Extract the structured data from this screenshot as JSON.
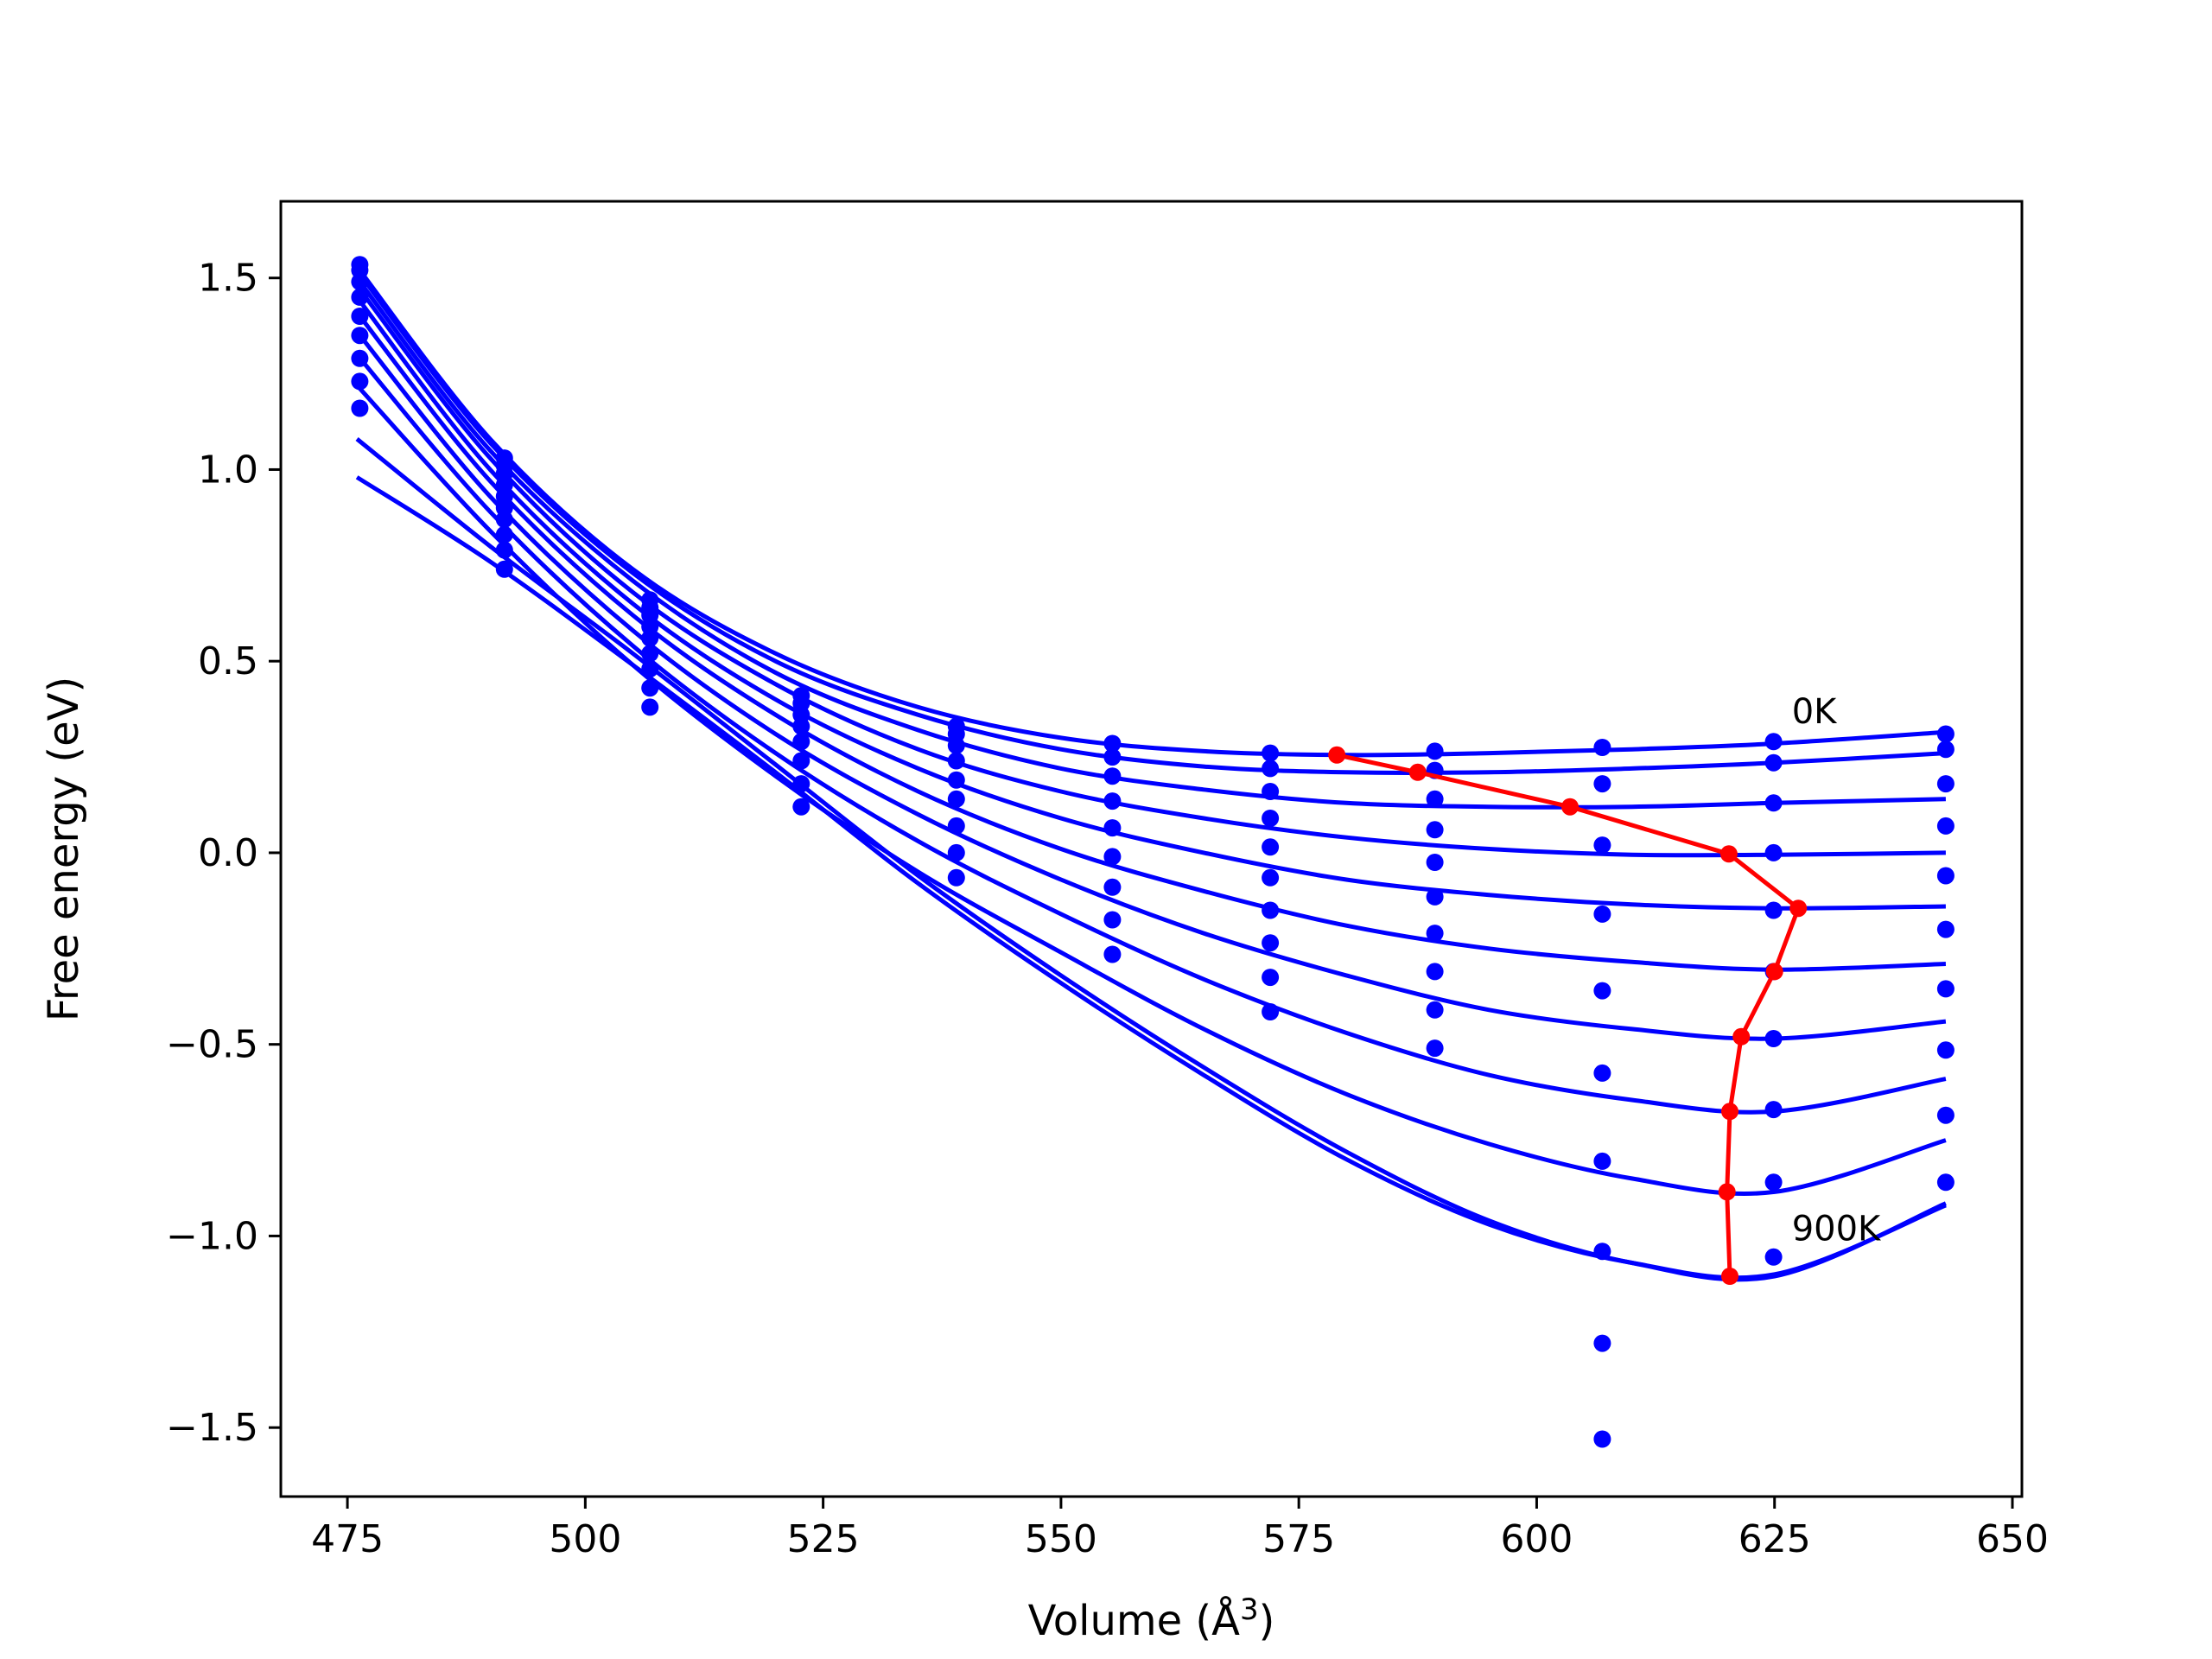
{
  "chart_data": {
    "type": "line",
    "title": "",
    "xlabel": "Volume (Å",
    "xlabel_sup": "3",
    "xlabel_end": ")",
    "ylabel": "Free energy (eV)",
    "xlim": [
      468,
      651
    ],
    "ylim": [
      -1.68,
      1.7
    ],
    "xticks": [
      475,
      500,
      525,
      550,
      575,
      600,
      625,
      650
    ],
    "yticks": [
      1.5,
      1.0,
      0.5,
      0.0,
      -0.5,
      -1.0,
      -1.5
    ],
    "ytick_labels": [
      "1.5",
      "1.0",
      "0.5",
      "0.0",
      "−0.5",
      "−1.0",
      "−1.5"
    ],
    "grid": false,
    "annotations": [
      {
        "text": "0K",
        "x": 625,
        "y": 0.37
      },
      {
        "text": "900K",
        "x": 625,
        "y": -0.98
      }
    ],
    "curve_color": "#0000ff",
    "scatter_color": "#0000ff",
    "minima_color": "#ff0000",
    "fitted_curves": [
      {
        "x": [
          476,
          490,
          505,
          520,
          535,
          550,
          565,
          580,
          595,
          610,
          625,
          643
        ],
        "y": [
          1.53,
          1.08,
          0.74,
          0.52,
          0.38,
          0.3,
          0.265,
          0.255,
          0.26,
          0.27,
          0.285,
          0.315
        ]
      },
      {
        "x": [
          476,
          490,
          505,
          520,
          535,
          550,
          565,
          580,
          595,
          610,
          625,
          643
        ],
        "y": [
          1.52,
          1.07,
          0.73,
          0.5,
          0.36,
          0.27,
          0.225,
          0.21,
          0.21,
          0.22,
          0.235,
          0.26
        ]
      },
      {
        "x": [
          476,
          490,
          505,
          520,
          535,
          550,
          565,
          580,
          595,
          610,
          625,
          643
        ],
        "y": [
          1.5,
          1.05,
          0.71,
          0.47,
          0.32,
          0.22,
          0.165,
          0.13,
          0.12,
          0.12,
          0.13,
          0.14
        ]
      },
      {
        "x": [
          476,
          490,
          505,
          520,
          535,
          550,
          565,
          580,
          595,
          610,
          625,
          643
        ],
        "y": [
          1.48,
          1.03,
          0.68,
          0.44,
          0.27,
          0.16,
          0.09,
          0.04,
          0.01,
          -0.005,
          -0.005,
          0.0
        ]
      },
      {
        "x": [
          476,
          490,
          505,
          520,
          535,
          550,
          565,
          580,
          595,
          610,
          625,
          643
        ],
        "y": [
          1.45,
          1.0,
          0.65,
          0.4,
          0.22,
          0.09,
          0.0,
          -0.07,
          -0.11,
          -0.135,
          -0.145,
          -0.14
        ]
      },
      {
        "x": [
          476,
          490,
          505,
          520,
          535,
          550,
          565,
          580,
          595,
          610,
          625,
          643
        ],
        "y": [
          1.41,
          0.97,
          0.62,
          0.36,
          0.16,
          0.01,
          -0.1,
          -0.19,
          -0.25,
          -0.285,
          -0.305,
          -0.29
        ]
      },
      {
        "x": [
          476,
          490,
          505,
          520,
          535,
          550,
          565,
          580,
          595,
          610,
          625,
          643
        ],
        "y": [
          1.36,
          0.93,
          0.58,
          0.31,
          0.1,
          -0.07,
          -0.21,
          -0.32,
          -0.41,
          -0.46,
          -0.485,
          -0.44
        ]
      },
      {
        "x": [
          476,
          490,
          505,
          520,
          535,
          550,
          565,
          580,
          595,
          610,
          625,
          643
        ],
        "y": [
          1.3,
          0.89,
          0.54,
          0.26,
          0.03,
          -0.16,
          -0.33,
          -0.47,
          -0.58,
          -0.645,
          -0.675,
          -0.59
        ]
      },
      {
        "x": [
          476,
          490,
          505,
          520,
          535,
          550,
          565,
          580,
          595,
          610,
          625,
          643
        ],
        "y": [
          1.22,
          0.84,
          0.49,
          0.2,
          -0.05,
          -0.26,
          -0.46,
          -0.63,
          -0.76,
          -0.85,
          -0.885,
          -0.75
        ]
      },
      {
        "x": [
          476,
          490,
          505,
          520,
          535,
          550,
          565,
          580,
          595,
          610,
          625,
          643
        ],
        "y": [
          1.08,
          0.8,
          0.52,
          0.23,
          -0.06,
          -0.32,
          -0.56,
          -0.78,
          -0.96,
          -1.07,
          -1.105,
          -0.915
        ]
      },
      {
        "x": [
          476,
          490,
          505,
          520,
          535,
          550,
          565,
          580,
          595,
          610,
          625,
          643
        ],
        "y": [
          0.98,
          0.76,
          0.49,
          0.21,
          -0.08,
          -0.34,
          -0.58,
          -0.8,
          -0.97,
          -1.07,
          -1.1,
          -0.92
        ]
      }
    ],
    "data_points": {
      "x": [
        476.3,
        491.5,
        506.8,
        522.7,
        539.0,
        555.4,
        572.0,
        589.3,
        606.9,
        624.9,
        643.0
      ],
      "y": [
        [
          1.535,
          1.52,
          1.49,
          1.45,
          1.4,
          1.35,
          1.29,
          1.23,
          1.16
        ],
        [
          1.03,
          1.01,
          0.99,
          0.96,
          0.93,
          0.9,
          0.87,
          0.83,
          0.79,
          0.74
        ],
        [
          0.66,
          0.64,
          0.62,
          0.59,
          0.56,
          0.52,
          0.48,
          0.43,
          0.38
        ],
        [
          0.41,
          0.39,
          0.36,
          0.33,
          0.29,
          0.24,
          0.18,
          0.12
        ],
        [
          0.33,
          0.31,
          0.28,
          0.24,
          0.19,
          0.14,
          0.07,
          0.0,
          -0.065
        ],
        [
          0.285,
          0.25,
          0.2,
          0.135,
          0.065,
          -0.01,
          -0.09,
          -0.175,
          -0.265
        ],
        [
          0.26,
          0.22,
          0.16,
          0.09,
          0.015,
          -0.065,
          -0.15,
          -0.235,
          -0.325,
          -0.415
        ],
        [
          0.265,
          0.215,
          0.14,
          0.06,
          -0.025,
          -0.115,
          -0.21,
          -0.31,
          -0.41,
          -0.51
        ],
        [
          0.275,
          0.18,
          0.02,
          -0.16,
          -0.36,
          -0.575,
          -0.805,
          -1.04,
          -1.28,
          -1.53
        ],
        [
          0.29,
          0.235,
          0.13,
          0.0,
          -0.15,
          -0.31,
          -0.485,
          -0.67,
          -0.86,
          -1.055
        ],
        [
          0.31,
          0.27,
          0.18,
          0.07,
          -0.06,
          -0.2,
          -0.355,
          -0.515,
          -0.685,
          -0.86
        ]
      ]
    },
    "minima_line": {
      "x": [
        579.0,
        587.5,
        603.5,
        620.2,
        627.5,
        625.0,
        621.5,
        620.3,
        620.0,
        620.3
      ],
      "y": [
        0.255,
        0.21,
        0.12,
        -0.003,
        -0.145,
        -0.31,
        -0.48,
        -0.675,
        -0.885,
        -1.105
      ]
    }
  }
}
